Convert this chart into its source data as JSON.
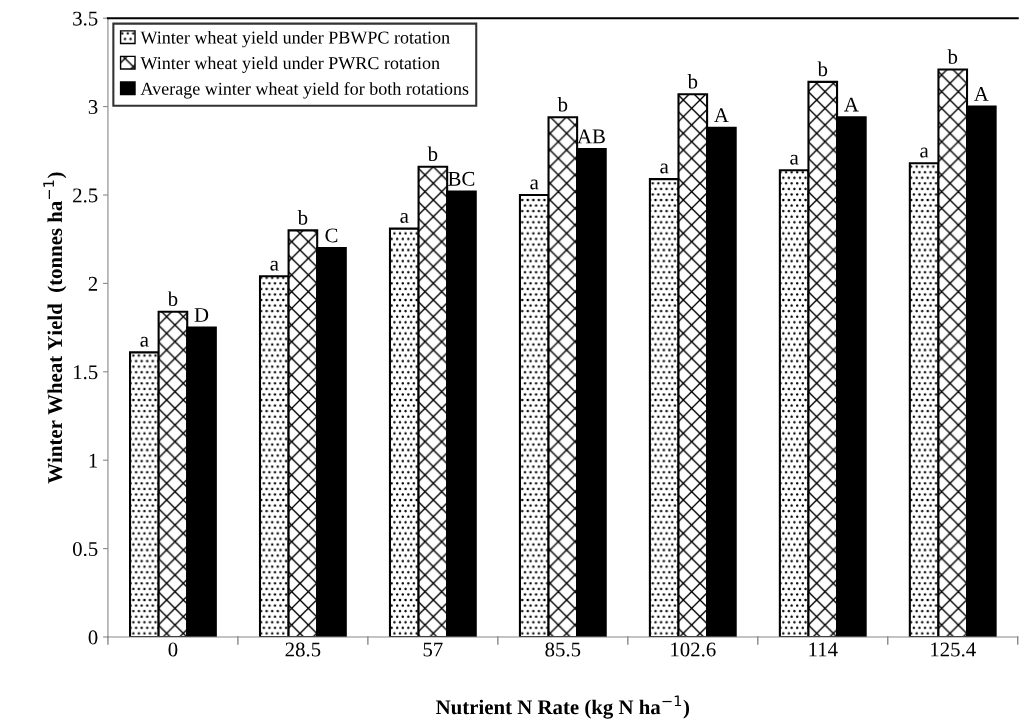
{
  "chart_data": {
    "type": "bar",
    "xlabel": "Nutrient N Rate (kg N ha$^{−1}$)",
    "ylabel": "Winter Wheat Yield  (tonnes ha$^{−1}$)",
    "categories": [
      "0",
      "28.5",
      "57",
      "85.5",
      "102.6",
      "114",
      "125.4"
    ],
    "series": [
      {
        "name": "Winter wheat yield under PBWPC rotation",
        "color": "#000000",
        "values": [
          1.61,
          2.04,
          2.31,
          2.5,
          2.59,
          2.64,
          2.68
        ],
        "value_labels": [
          "a",
          "a",
          "a",
          "a",
          "a",
          "a",
          "a"
        ]
      },
      {
        "name": "Winter wheat yield under PWRC rotation",
        "color": "#000000",
        "values": [
          1.84,
          2.3,
          2.66,
          2.94,
          3.07,
          3.14,
          3.21
        ],
        "value_labels": [
          "b",
          "b",
          "b",
          "b",
          "b",
          "b",
          "b"
        ]
      },
      {
        "name": "Average winter wheat yield for both rotations",
        "color": "#000000",
        "values": [
          1.75,
          2.2,
          2.52,
          2.76,
          2.88,
          2.94,
          3.0
        ],
        "value_labels": [
          "D",
          "C",
          "BC",
          "AB",
          "A",
          "A",
          "A"
        ]
      }
    ],
    "ylim": [
      0,
      3.5
    ],
    "yticks": [
      0,
      0.5,
      1,
      1.5,
      2,
      2.5,
      3,
      3.5
    ],
    "grid": false,
    "legend": "top left"
  }
}
